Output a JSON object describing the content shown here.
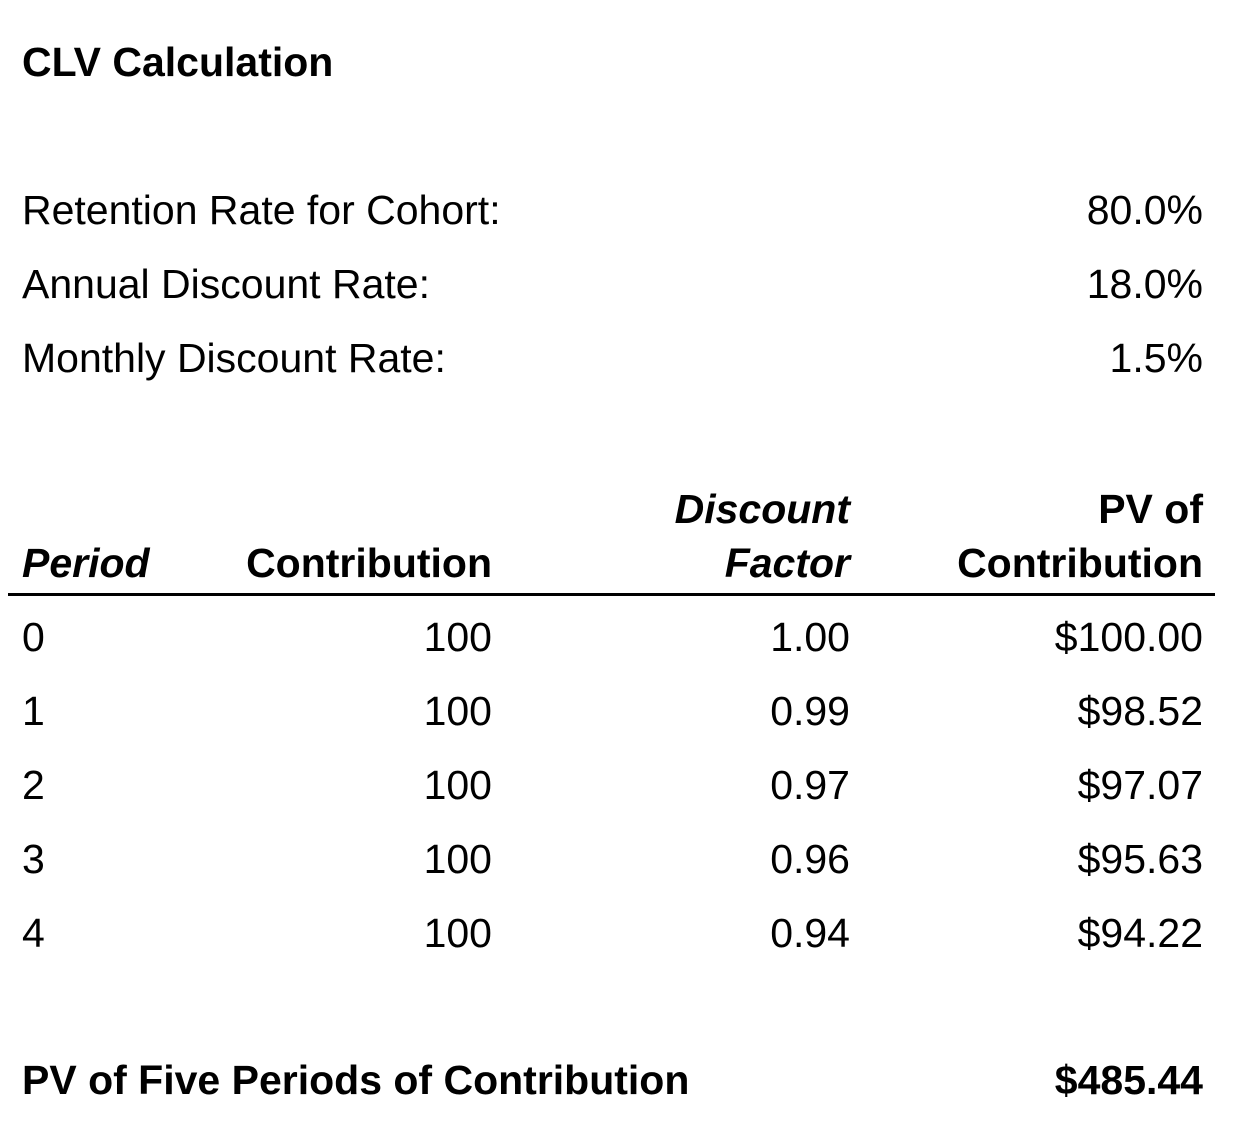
{
  "title": "CLV Calculation",
  "parameters": [
    {
      "label": "Retention Rate for Cohort:",
      "value": "80.0%"
    },
    {
      "label": "Annual Discount Rate:",
      "value": "18.0%"
    },
    {
      "label": "Monthly Discount Rate:",
      "value": "1.5%"
    }
  ],
  "table": {
    "headers": [
      [
        "Period"
      ],
      [
        "Contribution"
      ],
      [
        "Discount",
        "Factor"
      ],
      [
        "PV of",
        "Contribution"
      ]
    ],
    "rows": [
      [
        "0",
        "100",
        "1.00",
        "$100.00"
      ],
      [
        "1",
        "100",
        "0.99",
        "$98.52"
      ],
      [
        "2",
        "100",
        "0.97",
        "$97.07"
      ],
      [
        "3",
        "100",
        "0.96",
        "$95.63"
      ],
      [
        "4",
        "100",
        "0.94",
        "$94.22"
      ]
    ]
  },
  "total": {
    "label": "PV of Five Periods of Contribution",
    "value": "$485.44"
  }
}
